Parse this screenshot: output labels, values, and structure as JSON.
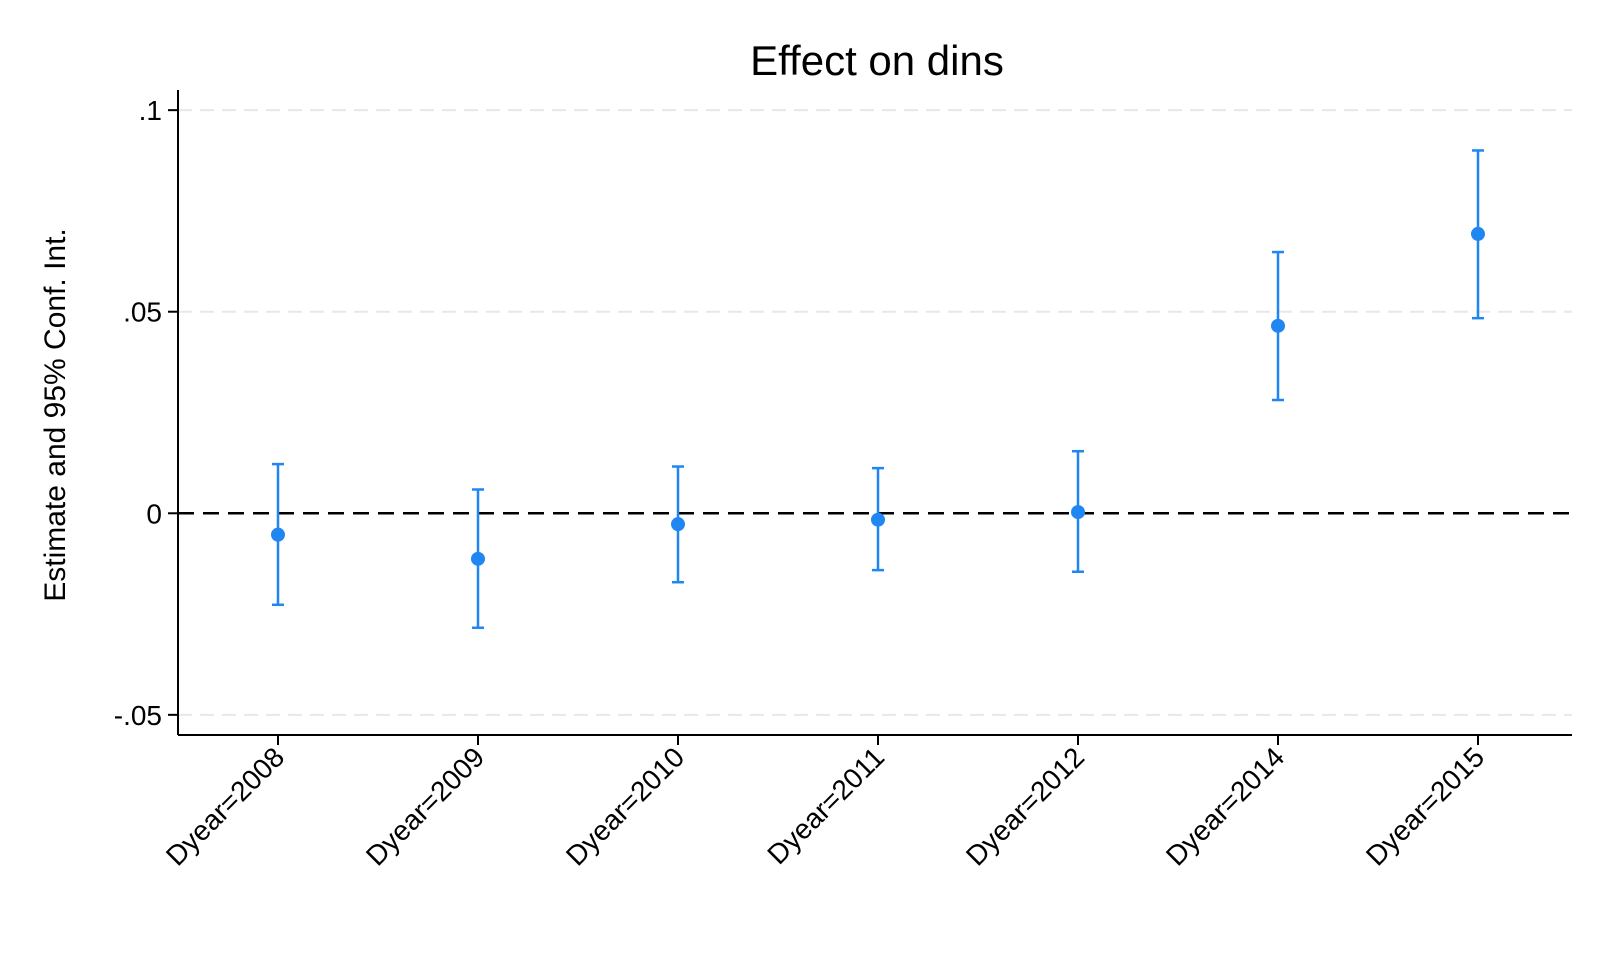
{
  "chart_data": {
    "type": "scatter",
    "title": "Effect on dins",
    "xlabel": "",
    "ylabel": "Estimate and 95% Conf. Int.",
    "categories": [
      "Dyear=2008",
      "Dyear=2009",
      "Dyear=2010",
      "Dyear=2011",
      "Dyear=2012",
      "Dyear=2014",
      "Dyear=2015"
    ],
    "series": [
      {
        "estimate": [
          -0.0053,
          -0.0113,
          -0.0027,
          -0.0016,
          0.0003,
          0.0465,
          0.0693
        ],
        "ci_lower": [
          -0.0227,
          -0.0284,
          -0.0171,
          -0.0141,
          -0.0145,
          0.0281,
          0.0484
        ],
        "ci_upper": [
          0.0122,
          0.0059,
          0.0116,
          0.0112,
          0.0154,
          0.0648,
          0.09
        ]
      }
    ],
    "yticks": [
      -0.05,
      0,
      0.05,
      0.1
    ],
    "ytick_labels": [
      "-.05",
      "0",
      ".05",
      ".1"
    ],
    "ylim": [
      -0.055,
      0.105
    ],
    "grid": true,
    "reference_line": 0,
    "colors": {
      "series": "#1f86f2",
      "grid": "#e8e8e8",
      "reference": "#000000"
    }
  }
}
